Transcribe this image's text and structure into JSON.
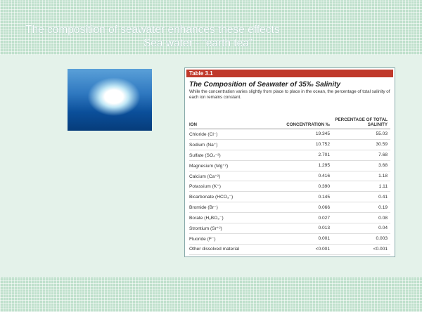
{
  "slide": {
    "title": "The composition of seawater enhances these effects",
    "subtitle": "Sea water - “earth tea”",
    "table": {
      "label": "Table 3.1",
      "title": "The Composition of Seawater of 35‰ Salinity",
      "description": "While the concentration varies slightly from place to place in the ocean, the percentage of total salinity of each ion remains constant.",
      "headers": [
        "ION",
        "CONCENTRATION ‰",
        "PERCENTAGE OF TOTAL SALINITY"
      ],
      "rows": [
        [
          "Chloride (Cl⁻)",
          "19.345",
          "55.03"
        ],
        [
          "Sodium (Na⁺)",
          "10.752",
          "30.59"
        ],
        [
          "Sulfate (SO₄⁻²)",
          "2.701",
          "7.68"
        ],
        [
          "Magnesium (Mg⁺²)",
          "1.295",
          "3.68"
        ],
        [
          "Calcium (Ca⁺²)",
          "0.416",
          "1.18"
        ],
        [
          "Potassium (K⁺)",
          "0.390",
          "1.11"
        ],
        [
          "Bicarbonate (HCO₃⁻)",
          "0.145",
          "0.41"
        ],
        [
          "Bromide (Br⁻)",
          "0.066",
          "0.19"
        ],
        [
          "Borate (H₂BO₃⁻)",
          "0.027",
          "0.08"
        ],
        [
          "Strontium (Sr⁺²)",
          "0.013",
          "0.04"
        ],
        [
          "Fluoride (F⁻)",
          "0.001",
          "0.003"
        ],
        [
          "Other dissolved material",
          "<0.001",
          "<0.001"
        ]
      ]
    }
  }
}
